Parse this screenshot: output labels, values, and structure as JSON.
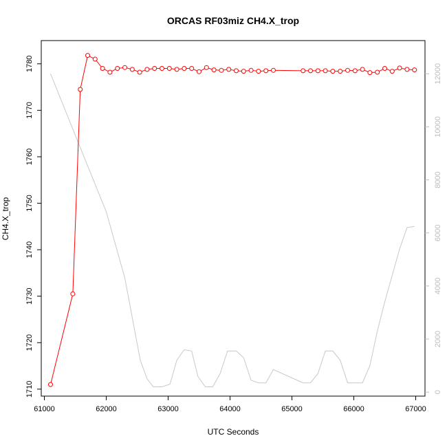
{
  "chart_data": {
    "type": "line",
    "title": "ORCAS RF03miz CH4.X_trop",
    "xlabel": "UTC Seconds",
    "ylabel": "CH4.X_trop",
    "xlim": [
      60950,
      67150
    ],
    "ylim": [
      1708.5,
      1785
    ],
    "y2lim": [
      -150,
      13250
    ],
    "x_ticks": [
      61000,
      62000,
      63000,
      64000,
      65000,
      66000,
      67000
    ],
    "y_ticks": [
      1710,
      1720,
      1730,
      1740,
      1750,
      1760,
      1770,
      1780
    ],
    "y2_ticks": [
      0,
      2000,
      4000,
      6000,
      8000,
      10000,
      12000
    ],
    "grid": false,
    "series": [
      {
        "axis": "left",
        "color": "#ff0000",
        "marker": "open-circle",
        "x": [
          61100,
          61460,
          61580,
          61700,
          61820,
          61940,
          62060,
          62180,
          62300,
          62420,
          62540,
          62660,
          62780,
          62900,
          63020,
          63140,
          63260,
          63380,
          63500,
          63620,
          63740,
          63860,
          63980,
          64100,
          64220,
          64340,
          64460,
          64580,
          64700,
          65180,
          65300,
          65420,
          65540,
          65660,
          65780,
          65900,
          66020,
          66140,
          66260,
          66380,
          66500,
          66620,
          66740,
          66860,
          66980
        ],
        "y": [
          1711.0,
          1730.5,
          1774.5,
          1781.8,
          1781.0,
          1779.0,
          1778.2,
          1779.0,
          1779.2,
          1778.8,
          1778.2,
          1778.8,
          1779.0,
          1779.0,
          1779.0,
          1778.8,
          1779.0,
          1779.0,
          1778.3,
          1779.2,
          1778.7,
          1778.6,
          1778.8,
          1778.5,
          1778.4,
          1778.6,
          1778.4,
          1778.5,
          1778.6,
          1778.5,
          1778.5,
          1778.5,
          1778.5,
          1778.4,
          1778.4,
          1778.6,
          1778.5,
          1778.8,
          1778.1,
          1778.2,
          1779.0,
          1778.4,
          1779.1,
          1778.8,
          1778.7
        ]
      },
      {
        "axis": "right",
        "color": "#c8c8c8",
        "marker": "none",
        "x": [
          61100,
          61600,
          62000,
          62300,
          62550,
          62660,
          62760,
          62900,
          63030,
          63140,
          63260,
          63380,
          63480,
          63600,
          63720,
          63840,
          63960,
          64100,
          64220,
          64340,
          64460,
          64580,
          64700,
          65180,
          65300,
          65420,
          65540,
          65660,
          65780,
          65900,
          66020,
          66140,
          66260,
          66380,
          66500,
          66620,
          66740,
          66860,
          66980
        ],
        "y": [
          12000,
          9100,
          6800,
          4300,
          1200,
          500,
          200,
          200,
          300,
          1200,
          1600,
          1550,
          600,
          200,
          200,
          700,
          1550,
          1550,
          1300,
          450,
          350,
          350,
          850,
          350,
          350,
          700,
          1550,
          1550,
          1200,
          350,
          350,
          350,
          1000,
          2300,
          3400,
          4400,
          5400,
          6200,
          6250
        ]
      }
    ]
  }
}
